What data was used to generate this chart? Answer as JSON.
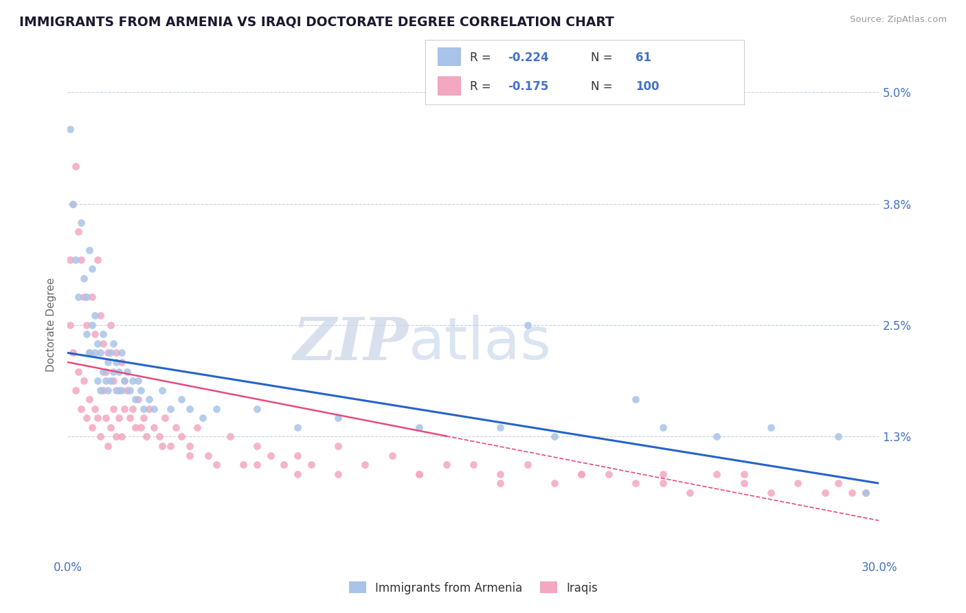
{
  "title": "IMMIGRANTS FROM ARMENIA VS IRAQI DOCTORATE DEGREE CORRELATION CHART",
  "source_text": "Source: ZipAtlas.com",
  "ylabel": "Doctorate Degree",
  "xlim": [
    0.0,
    0.3
  ],
  "ylim": [
    0.0,
    0.05
  ],
  "yticks": [
    0.013,
    0.025,
    0.038,
    0.05
  ],
  "ytick_labels": [
    "1.3%",
    "2.5%",
    "3.8%",
    "5.0%"
  ],
  "xticks": [
    0.0,
    0.05,
    0.1,
    0.15,
    0.2,
    0.25,
    0.3
  ],
  "xtick_labels": [
    "0.0%",
    "",
    "",
    "",
    "",
    "",
    "30.0%"
  ],
  "series1_color": "#a8c4e8",
  "series2_color": "#f4a7c0",
  "line1_color": "#2563c7",
  "line2_color": "#e8497a",
  "R1": -0.224,
  "N1": 61,
  "R2": -0.175,
  "N2": 100,
  "legend_label1": "Immigrants from Armenia",
  "legend_label2": "Iraqis",
  "watermark_zip": "ZIP",
  "watermark_atlas": "atlas",
  "background_color": "#ffffff",
  "title_color": "#1a1a2e",
  "axis_color": "#4472c4",
  "tick_color": "#4472c4",
  "grid_color": "#b8c4d8",
  "title_fontsize": 13.5,
  "line1_start_y": 0.022,
  "line1_end_y": 0.008,
  "line2_start_y": 0.021,
  "line2_end_y": 0.004,
  "scatter1_x": [
    0.001,
    0.002,
    0.003,
    0.004,
    0.005,
    0.006,
    0.007,
    0.007,
    0.008,
    0.008,
    0.009,
    0.009,
    0.01,
    0.01,
    0.011,
    0.011,
    0.012,
    0.012,
    0.013,
    0.013,
    0.014,
    0.015,
    0.015,
    0.016,
    0.016,
    0.017,
    0.017,
    0.018,
    0.018,
    0.019,
    0.02,
    0.02,
    0.021,
    0.022,
    0.023,
    0.024,
    0.025,
    0.026,
    0.027,
    0.028,
    0.03,
    0.032,
    0.035,
    0.038,
    0.042,
    0.045,
    0.05,
    0.055,
    0.07,
    0.085,
    0.1,
    0.13,
    0.16,
    0.18,
    0.22,
    0.24,
    0.26,
    0.285,
    0.295,
    0.21,
    0.17
  ],
  "scatter1_y": [
    0.046,
    0.038,
    0.032,
    0.028,
    0.036,
    0.03,
    0.024,
    0.028,
    0.022,
    0.033,
    0.025,
    0.031,
    0.022,
    0.026,
    0.019,
    0.023,
    0.018,
    0.022,
    0.02,
    0.024,
    0.019,
    0.021,
    0.018,
    0.022,
    0.019,
    0.02,
    0.023,
    0.018,
    0.021,
    0.02,
    0.022,
    0.018,
    0.019,
    0.02,
    0.018,
    0.019,
    0.017,
    0.019,
    0.018,
    0.016,
    0.017,
    0.016,
    0.018,
    0.016,
    0.017,
    0.016,
    0.015,
    0.016,
    0.016,
    0.014,
    0.015,
    0.014,
    0.014,
    0.013,
    0.014,
    0.013,
    0.014,
    0.013,
    0.007,
    0.017,
    0.025
  ],
  "scatter2_x": [
    0.001,
    0.001,
    0.002,
    0.002,
    0.003,
    0.003,
    0.004,
    0.004,
    0.005,
    0.005,
    0.006,
    0.006,
    0.007,
    0.007,
    0.008,
    0.008,
    0.009,
    0.009,
    0.01,
    0.01,
    0.011,
    0.011,
    0.012,
    0.012,
    0.013,
    0.013,
    0.014,
    0.014,
    0.015,
    0.015,
    0.016,
    0.016,
    0.017,
    0.017,
    0.018,
    0.018,
    0.019,
    0.019,
    0.02,
    0.02,
    0.021,
    0.021,
    0.022,
    0.023,
    0.024,
    0.025,
    0.026,
    0.027,
    0.028,
    0.029,
    0.03,
    0.032,
    0.034,
    0.036,
    0.038,
    0.04,
    0.042,
    0.045,
    0.048,
    0.052,
    0.06,
    0.065,
    0.07,
    0.075,
    0.08,
    0.085,
    0.09,
    0.1,
    0.11,
    0.12,
    0.13,
    0.14,
    0.15,
    0.16,
    0.17,
    0.18,
    0.19,
    0.2,
    0.21,
    0.22,
    0.23,
    0.24,
    0.25,
    0.26,
    0.27,
    0.28,
    0.285,
    0.29,
    0.295,
    0.25,
    0.22,
    0.19,
    0.16,
    0.13,
    0.1,
    0.085,
    0.07,
    0.055,
    0.045,
    0.035
  ],
  "scatter2_y": [
    0.032,
    0.025,
    0.038,
    0.022,
    0.042,
    0.018,
    0.035,
    0.02,
    0.032,
    0.016,
    0.028,
    0.019,
    0.025,
    0.015,
    0.022,
    0.017,
    0.028,
    0.014,
    0.024,
    0.016,
    0.032,
    0.015,
    0.026,
    0.013,
    0.023,
    0.018,
    0.02,
    0.015,
    0.022,
    0.012,
    0.025,
    0.014,
    0.019,
    0.016,
    0.022,
    0.013,
    0.018,
    0.015,
    0.021,
    0.013,
    0.019,
    0.016,
    0.018,
    0.015,
    0.016,
    0.014,
    0.017,
    0.014,
    0.015,
    0.013,
    0.016,
    0.014,
    0.013,
    0.015,
    0.012,
    0.014,
    0.013,
    0.012,
    0.014,
    0.011,
    0.013,
    0.01,
    0.012,
    0.011,
    0.01,
    0.011,
    0.01,
    0.012,
    0.01,
    0.011,
    0.009,
    0.01,
    0.01,
    0.009,
    0.01,
    0.008,
    0.009,
    0.009,
    0.008,
    0.009,
    0.007,
    0.009,
    0.008,
    0.007,
    0.008,
    0.007,
    0.008,
    0.007,
    0.007,
    0.009,
    0.008,
    0.009,
    0.008,
    0.009,
    0.009,
    0.009,
    0.01,
    0.01,
    0.011,
    0.012
  ]
}
